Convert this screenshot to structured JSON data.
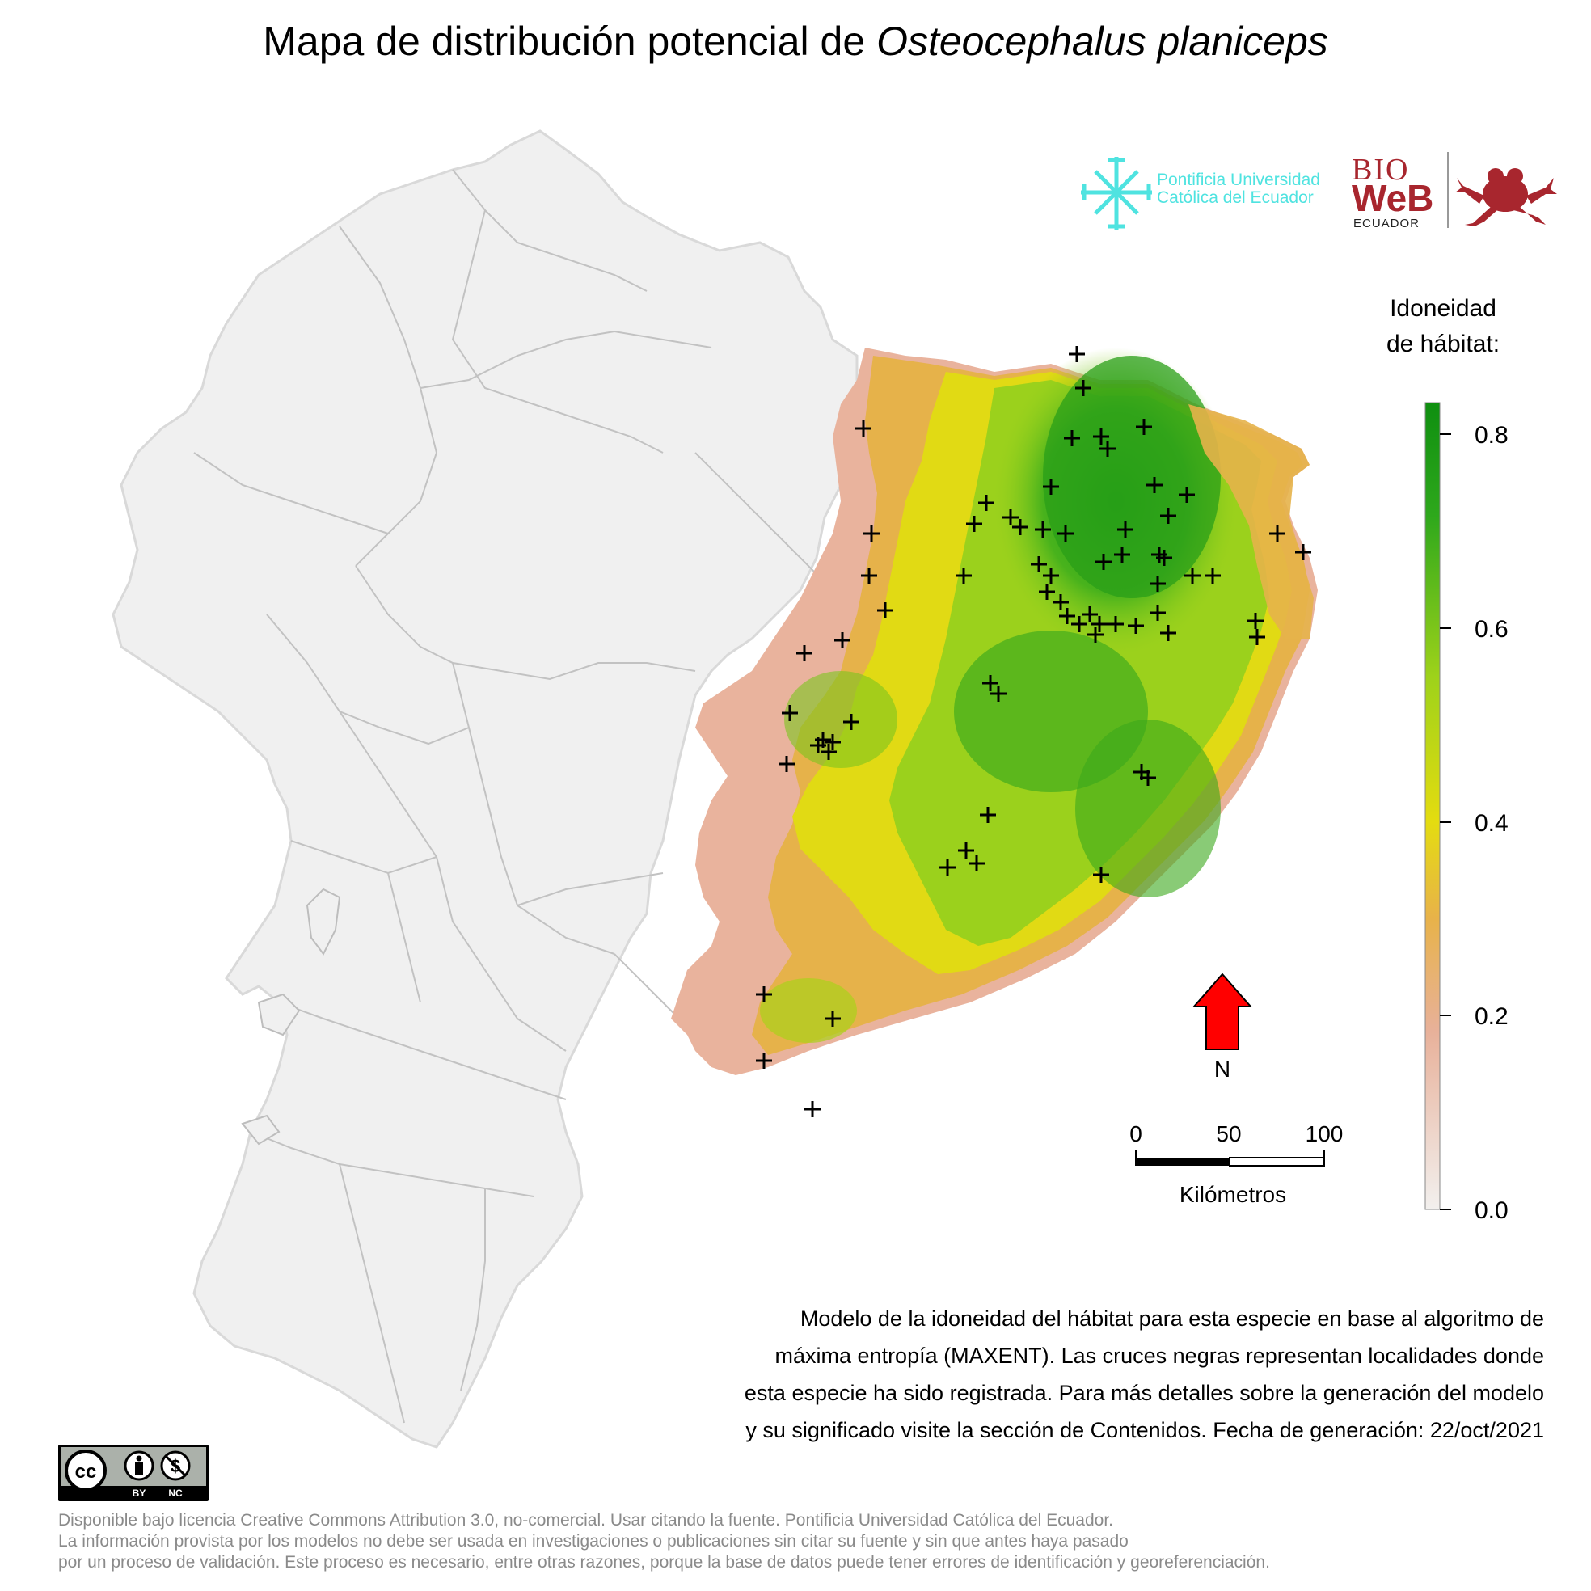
{
  "title": {
    "prefix": "Mapa de distribución potencial de ",
    "species": "Osteocephalus planiceps"
  },
  "logos": {
    "puce": {
      "line1": "Pontificia Universidad",
      "line2": "Católica del Ecuador",
      "icon": "cross-compass-icon",
      "color": "#4fe3e0"
    },
    "bioweb": {
      "bio": "BIO",
      "web": "WeB",
      "region": "ECUADOR",
      "icon": "frog-icon",
      "color": "#a8262e"
    }
  },
  "legend": {
    "title_line1": "Idoneidad",
    "title_line2": "de hábitat:",
    "ticks": [
      "0.8",
      "0.6",
      "0.4",
      "0.2",
      "0.0"
    ],
    "colors": [
      "#f2f0ee",
      "#e8b19a",
      "#e8b24a",
      "#e4dc10",
      "#9ed21a",
      "#2ea81c",
      "#0f8f10"
    ]
  },
  "north": {
    "label": "N",
    "color": "#ff0000"
  },
  "scale": {
    "labels": [
      "0",
      "50",
      "100"
    ],
    "unit": "Kilómetros"
  },
  "description": {
    "line1": "Modelo de la idoneidad del hábitat para esta especie en base al algoritmo de",
    "line2": "máxima entropía (MAXENT). Las cruces negras representan localidades donde",
    "line3": "esta especie ha sido registrada. Para más detalles sobre la generación del modelo",
    "line4": "y su significado visite la sección de Contenidos. Fecha de generación: 22/oct/2021"
  },
  "license_badge": {
    "by": "BY",
    "nc": "NC",
    "cc": "cc"
  },
  "footer": {
    "line1": "Disponible bajo licencia Creative Commons Attribution 3.0, no-comercial. Usar citando la fuente. Pontificia Universidad Católica del Ecuador.",
    "line2": "La información provista por los modelos no debe ser usada en investigaciones o publicaciones sin citar su fuente y sin que antes haya pasado",
    "line3": "por un proceso de validación. Este proceso es necesario, entre otras razones, porque la base de datos puede tener errores de identificación y georeferenciación."
  }
}
